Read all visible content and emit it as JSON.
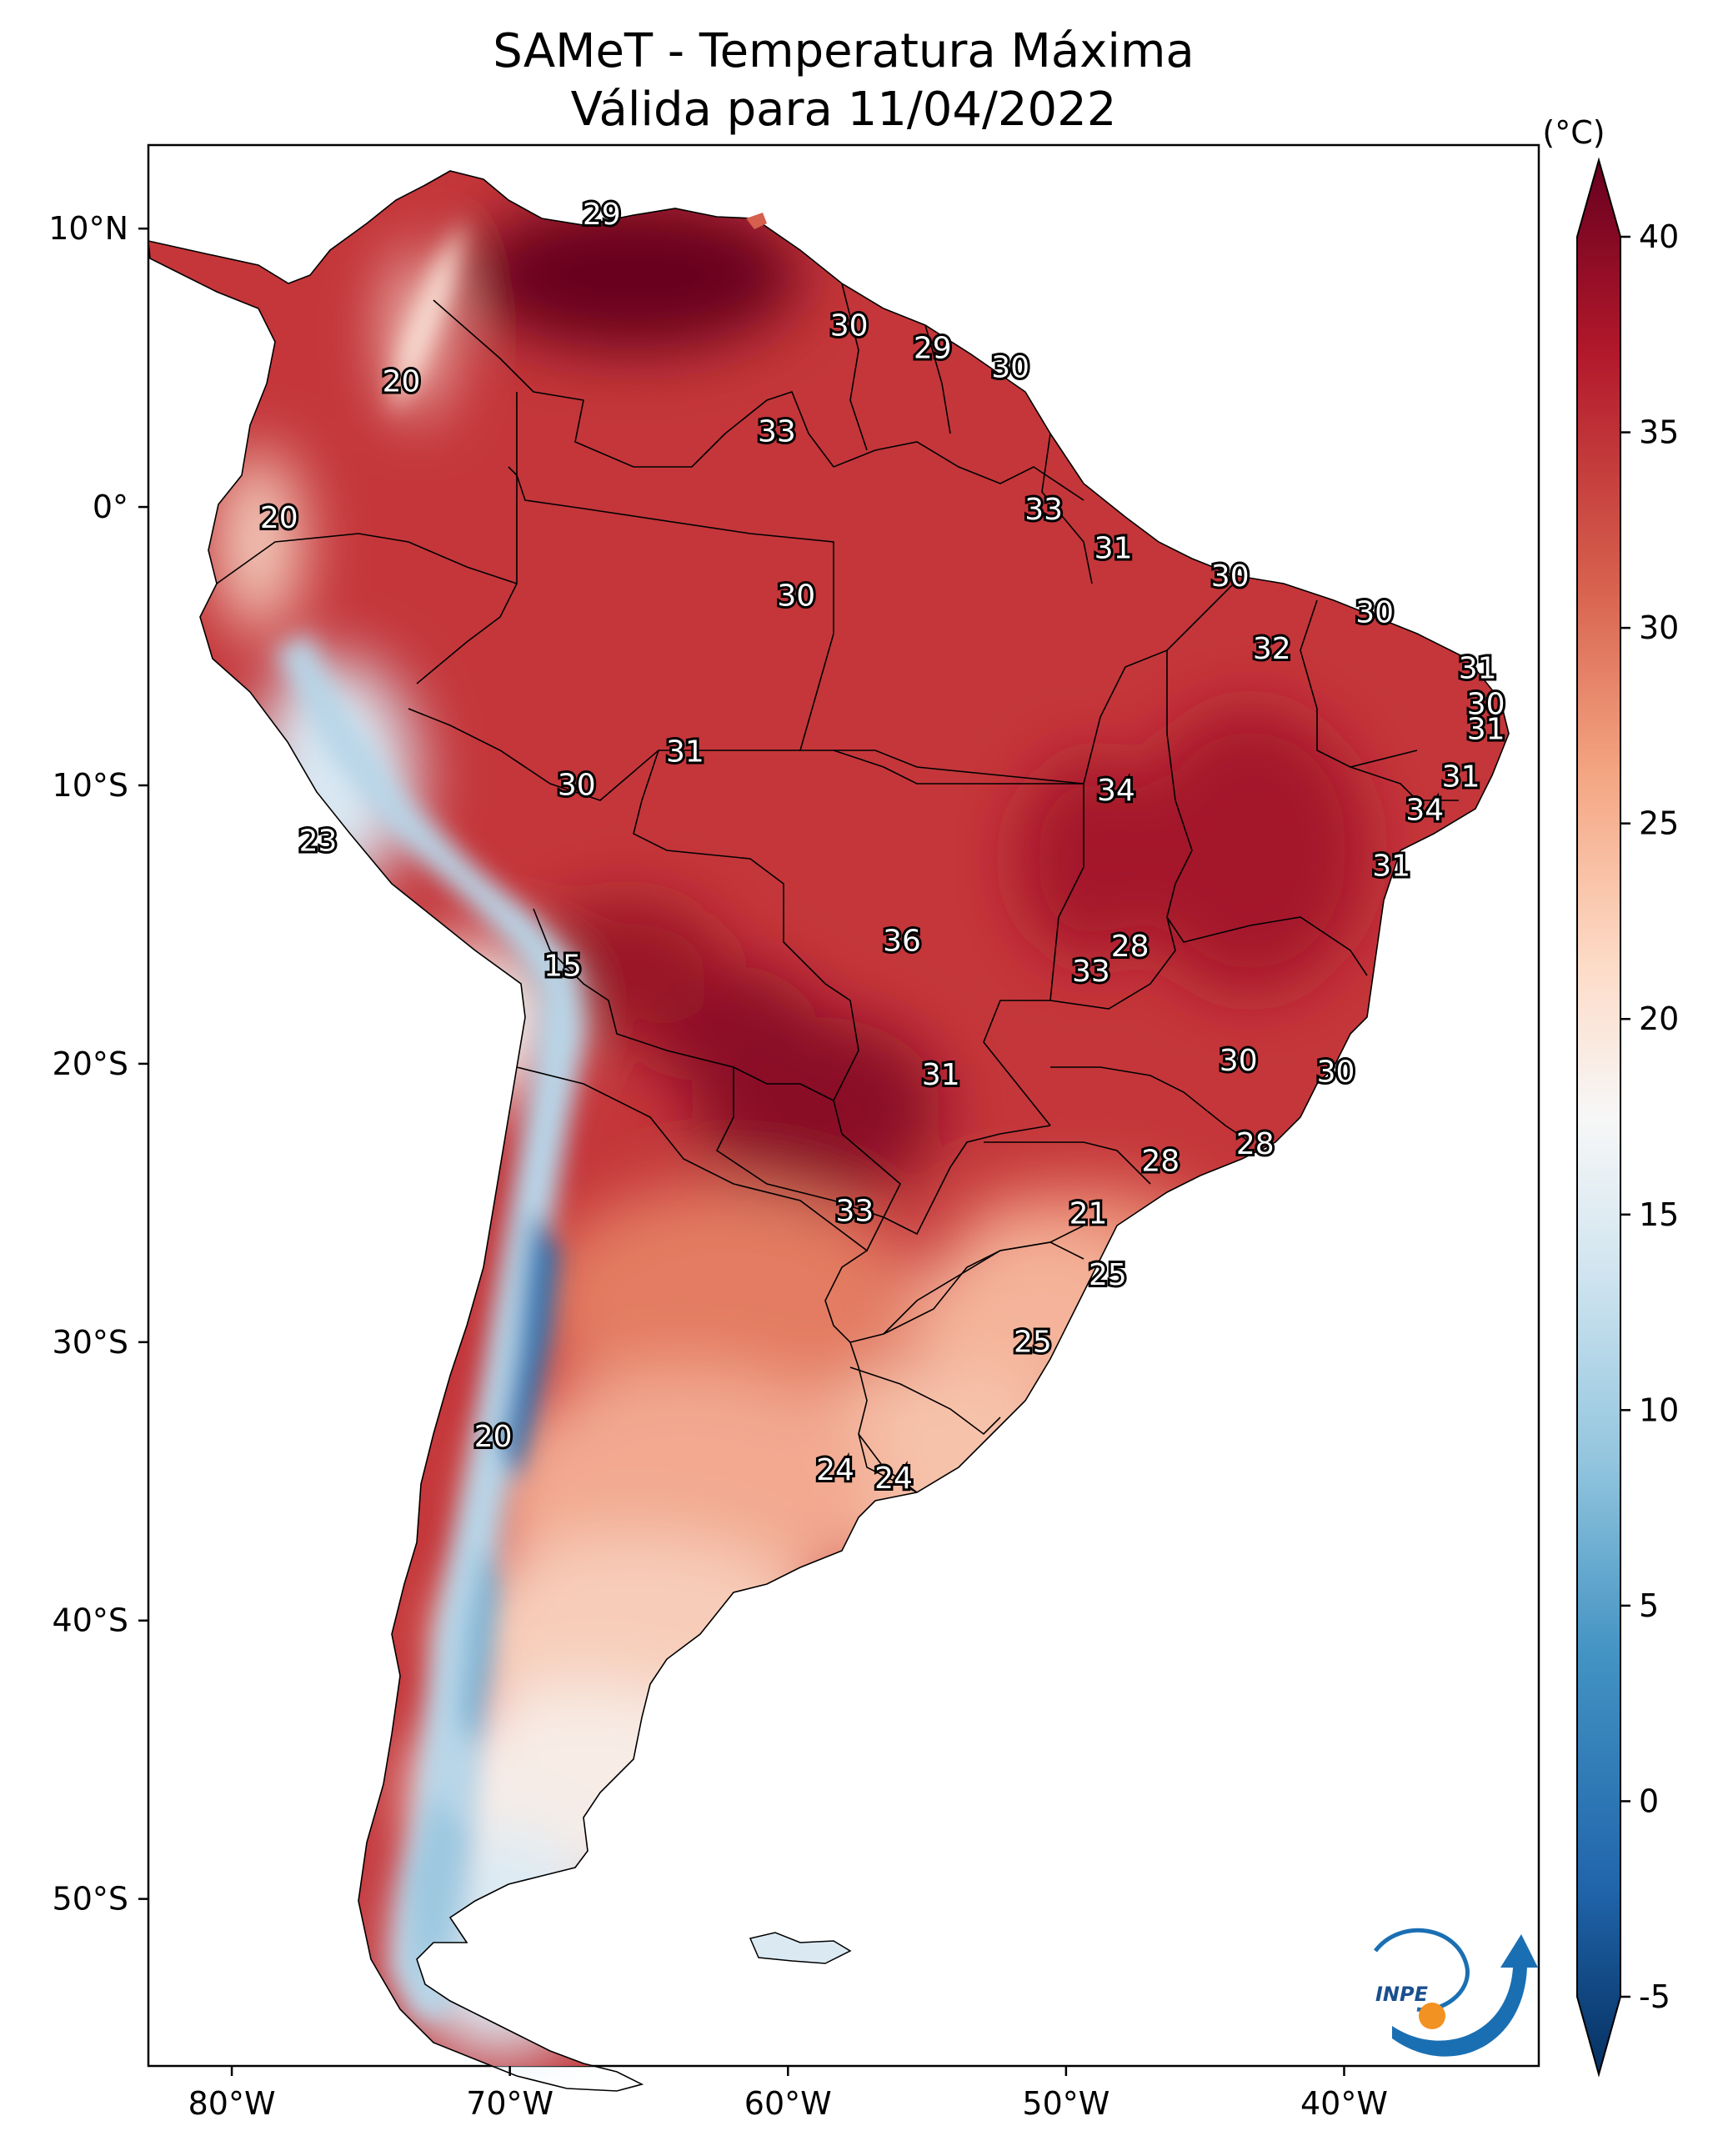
{
  "title": {
    "line1": "SAMeT - Temperatura Máxima",
    "line2": "Válida para 11/04/2022"
  },
  "axes": {
    "lon_ticks": [
      {
        "lon": -80,
        "label": "80°W"
      },
      {
        "lon": -70,
        "label": "70°W"
      },
      {
        "lon": -60,
        "label": "60°W"
      },
      {
        "lon": -50,
        "label": "50°W"
      },
      {
        "lon": -40,
        "label": "40°W"
      }
    ],
    "lat_ticks": [
      {
        "lat": 10,
        "label": "10°N"
      },
      {
        "lat": 0,
        "label": "0°"
      },
      {
        "lat": -10,
        "label": "10°S"
      },
      {
        "lat": -20,
        "label": "20°S"
      },
      {
        "lat": -30,
        "label": "30°S"
      },
      {
        "lat": -40,
        "label": "40°S"
      },
      {
        "lat": -50,
        "label": "50°S"
      }
    ]
  },
  "colorbar": {
    "unit_label": "(°C)",
    "min": -5,
    "max": 40,
    "ticks": [
      {
        "value": 40,
        "label": "40"
      },
      {
        "value": 35,
        "label": "35"
      },
      {
        "value": 30,
        "label": "30"
      },
      {
        "value": 25,
        "label": "25"
      },
      {
        "value": 20,
        "label": "20"
      },
      {
        "value": 15,
        "label": "15"
      },
      {
        "value": 10,
        "label": "10"
      },
      {
        "value": 5,
        "label": "5"
      },
      {
        "value": 0,
        "label": "0"
      },
      {
        "value": -5,
        "label": "-5"
      }
    ],
    "colors": {
      "hot_extreme": "#67001f",
      "hot": "#b2182b",
      "warm": "#d6604d",
      "mild": "#f4a582",
      "light_warm": "#fddbc7",
      "neutral": "#f7f7f7",
      "light_cool": "#d1e5f0",
      "cool": "#92c5de",
      "cold": "#4393c3",
      "colder": "#2166ac",
      "cold_extreme": "#053061"
    }
  },
  "station_labels": [
    {
      "text": "29",
      "lon": -66.7,
      "lat": 10.5
    },
    {
      "text": "20",
      "lon": -73.9,
      "lat": 4.5
    },
    {
      "text": "30",
      "lon": -57.8,
      "lat": 6.5
    },
    {
      "text": "29",
      "lon": -54.8,
      "lat": 5.7
    },
    {
      "text": "30",
      "lon": -52.0,
      "lat": 5.0
    },
    {
      "text": "33",
      "lon": -60.4,
      "lat": 2.7
    },
    {
      "text": "20",
      "lon": -78.3,
      "lat": -0.4
    },
    {
      "text": "33",
      "lon": -50.8,
      "lat": -0.1
    },
    {
      "text": "31",
      "lon": -48.3,
      "lat": -1.5
    },
    {
      "text": "30",
      "lon": -59.7,
      "lat": -3.2
    },
    {
      "text": "30",
      "lon": -44.1,
      "lat": -2.5
    },
    {
      "text": "30",
      "lon": -38.9,
      "lat": -3.8
    },
    {
      "text": "32",
      "lon": -42.6,
      "lat": -5.1
    },
    {
      "text": "31",
      "lon": -35.2,
      "lat": -5.8
    },
    {
      "text": "30",
      "lon": -34.9,
      "lat": -7.1
    },
    {
      "text": "31",
      "lon": -34.9,
      "lat": -8.0
    },
    {
      "text": "31",
      "lon": -63.7,
      "lat": -8.8
    },
    {
      "text": "30",
      "lon": -67.6,
      "lat": -10.0
    },
    {
      "text": "34",
      "lon": -48.2,
      "lat": -10.2
    },
    {
      "text": "31",
      "lon": -35.8,
      "lat": -9.7
    },
    {
      "text": "34",
      "lon": -37.1,
      "lat": -10.9
    },
    {
      "text": "23",
      "lon": -76.9,
      "lat": -12.0
    },
    {
      "text": "31",
      "lon": -38.3,
      "lat": -12.9
    },
    {
      "text": "15",
      "lon": -68.1,
      "lat": -16.5
    },
    {
      "text": "36",
      "lon": -55.9,
      "lat": -15.6
    },
    {
      "text": "28",
      "lon": -47.7,
      "lat": -15.8
    },
    {
      "text": "33",
      "lon": -49.1,
      "lat": -16.7
    },
    {
      "text": "31",
      "lon": -54.5,
      "lat": -20.4
    },
    {
      "text": "30",
      "lon": -43.8,
      "lat": -19.9
    },
    {
      "text": "30",
      "lon": -40.3,
      "lat": -20.3
    },
    {
      "text": "28",
      "lon": -43.2,
      "lat": -22.9
    },
    {
      "text": "28",
      "lon": -46.6,
      "lat": -23.5
    },
    {
      "text": "33",
      "lon": -57.6,
      "lat": -25.3
    },
    {
      "text": "21",
      "lon": -49.2,
      "lat": -25.4
    },
    {
      "text": "25",
      "lon": -48.5,
      "lat": -27.6
    },
    {
      "text": "25",
      "lon": -51.2,
      "lat": -30.0
    },
    {
      "text": "20",
      "lon": -70.6,
      "lat": -33.4
    },
    {
      "text": "24",
      "lon": -58.3,
      "lat": -34.6
    },
    {
      "text": "24",
      "lon": -56.2,
      "lat": -34.9
    }
  ],
  "logo": {
    "text": "INPE"
  }
}
